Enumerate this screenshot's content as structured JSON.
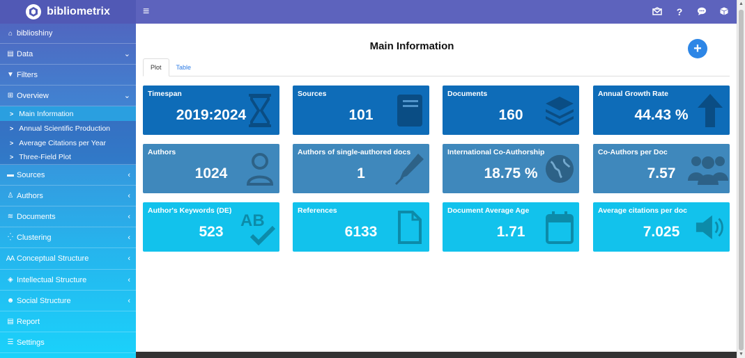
{
  "brand": {
    "name": "bibliometrix",
    "logo_icon": "hexagon-logo-icon"
  },
  "header": {
    "menu_icon": "≡",
    "icons": [
      "envelope-icon",
      "question-icon",
      "chat-icon",
      "box-icon"
    ],
    "question_glyph": "?"
  },
  "sidebar": {
    "items": [
      {
        "label": "biblioshiny",
        "icon": "⌂",
        "chevron": ""
      },
      {
        "label": "Data",
        "icon": "▤",
        "chevron": "⌄"
      },
      {
        "label": "Filters",
        "icon": "▼",
        "chevron": ""
      },
      {
        "label": "Overview",
        "icon": "⊞",
        "chevron": "⌄"
      },
      {
        "label": "Sources",
        "icon": "▬",
        "chevron": "‹"
      },
      {
        "label": "Authors",
        "icon": "♙",
        "chevron": "‹"
      },
      {
        "label": "Documents",
        "icon": "≋",
        "chevron": "‹"
      },
      {
        "label": "Clustering",
        "icon": "⁛",
        "chevron": "‹"
      },
      {
        "label": "Conceptual Structure",
        "icon": "Ꜳ",
        "chevron": "‹"
      },
      {
        "label": "Intellectual Structure",
        "icon": "◈",
        "chevron": "‹"
      },
      {
        "label": "Social Structure",
        "icon": "☻",
        "chevron": "‹"
      },
      {
        "label": "Report",
        "icon": "▤",
        "chevron": ""
      },
      {
        "label": "Settings",
        "icon": "☰",
        "chevron": ""
      }
    ],
    "subitems": [
      {
        "label": "Main Information",
        "icon": ">"
      },
      {
        "label": "Annual Scientific Production",
        "icon": ">"
      },
      {
        "label": "Average Citations per Year",
        "icon": ">"
      },
      {
        "label": "Three-Field Plot",
        "icon": ">"
      }
    ]
  },
  "main": {
    "title": "Main Information",
    "fab": "+",
    "tabs": [
      {
        "label": "Plot"
      },
      {
        "label": "Table"
      }
    ],
    "cards": [
      {
        "title": "Timespan",
        "value": "2019:2024",
        "icon": "hourglass-icon"
      },
      {
        "title": "Sources",
        "value": "101",
        "icon": "book-icon"
      },
      {
        "title": "Documents",
        "value": "160",
        "icon": "layers-icon"
      },
      {
        "title": "Annual Growth Rate",
        "value": "44.43 %",
        "icon": "arrow-up-icon"
      },
      {
        "title": "Authors",
        "value": "1024",
        "icon": "user-icon"
      },
      {
        "title": "Authors of single-authored docs",
        "value": "1",
        "icon": "pen-icon"
      },
      {
        "title": "International Co-Authorship",
        "value": "18.75 %",
        "icon": "globe-icon"
      },
      {
        "title": "Co-Authors per Doc",
        "value": "7.57",
        "icon": "users-icon"
      },
      {
        "title": "Author's Keywords (DE)",
        "value": "523",
        "icon": "spellcheck-icon"
      },
      {
        "title": "References",
        "value": "6133",
        "icon": "file-icon"
      },
      {
        "title": "Document Average Age",
        "value": "1.71",
        "icon": "calendar-icon"
      },
      {
        "title": "Average citations per doc",
        "value": "7.025",
        "icon": "volume-icon"
      }
    ]
  },
  "colors": {
    "dark": "#0e6cb8",
    "mid": "#3f88bc",
    "light": "#12c2ec",
    "header": "#5d63bd"
  }
}
